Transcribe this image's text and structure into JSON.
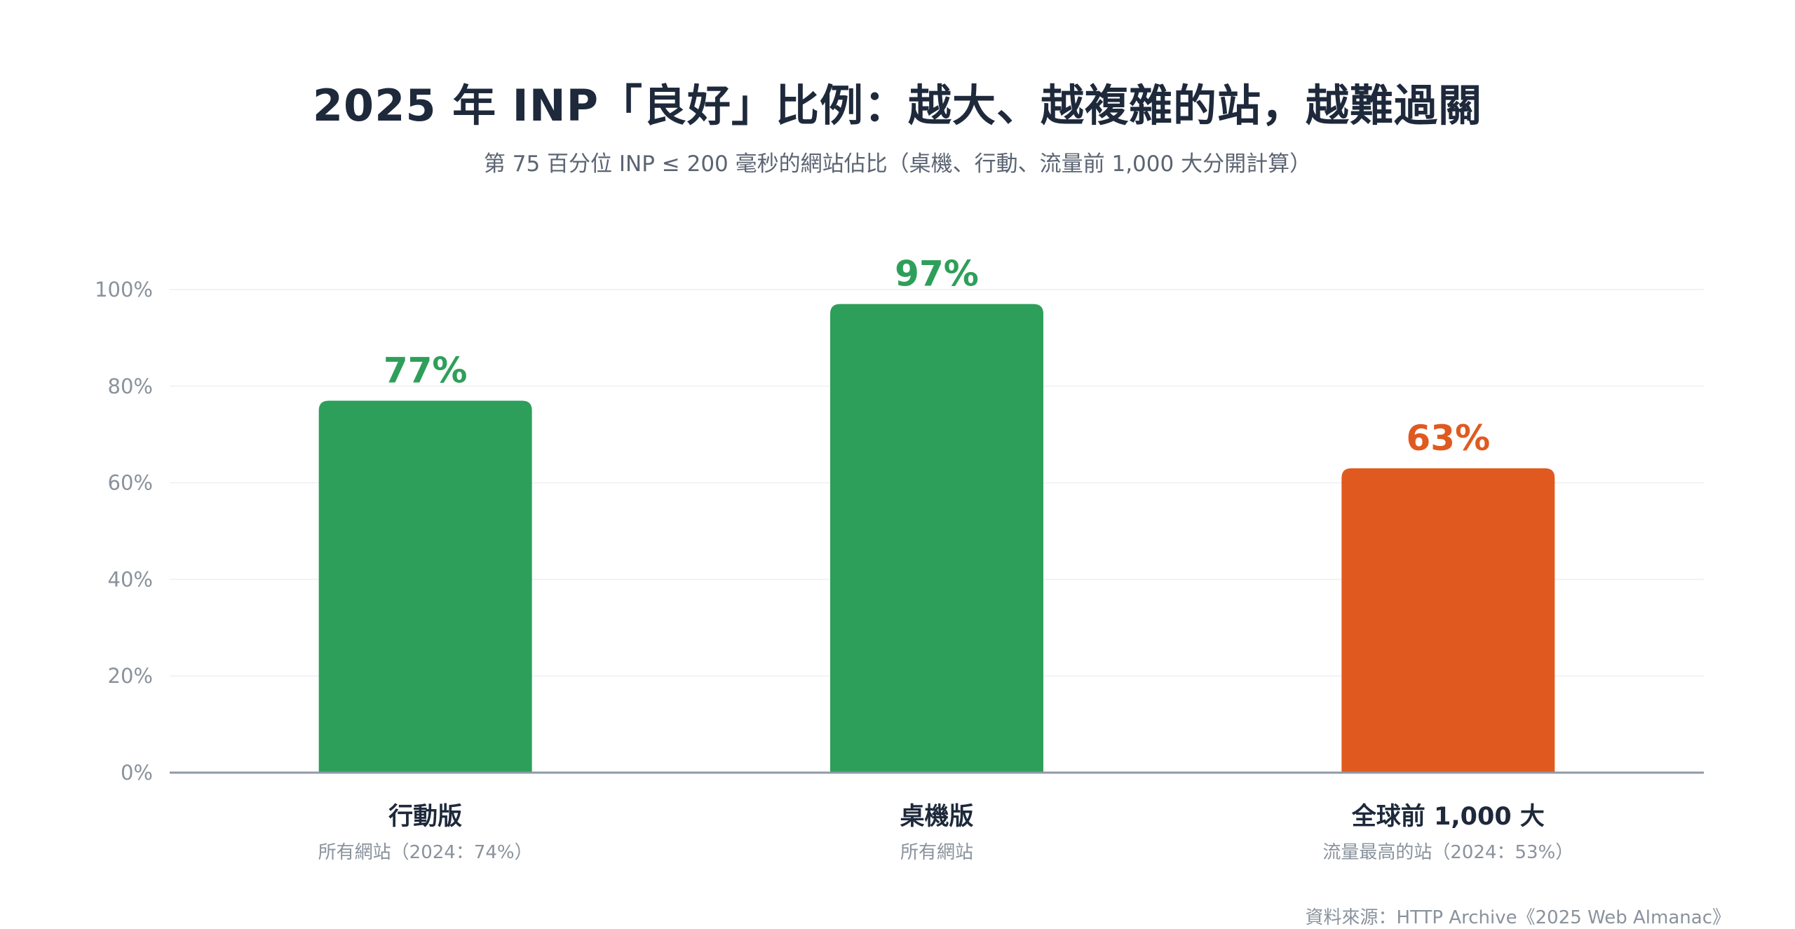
{
  "chart_data": {
    "type": "bar",
    "title": "2025 年 INP「良好」比例：越大、越複雜的站，越難過關",
    "subtitle": "第 75 百分位 INP ≤ 200 毫秒的網站佔比（桌機、行動、流量前 1,000 大分開計算）",
    "categories": [
      "行動版",
      "桌機版",
      "全球前 1,000 大"
    ],
    "category_notes": [
      "所有網站（2024：74%）",
      "所有網站",
      "流量最高的站（2024：53%）"
    ],
    "values": [
      77,
      97,
      63
    ],
    "value_labels": [
      "77%",
      "97%",
      "63%"
    ],
    "bar_colors": [
      "#2e9f5a",
      "#2e9f5a",
      "#e05a20"
    ],
    "ylim": [
      0,
      100
    ],
    "yticks": [
      0,
      20,
      40,
      60,
      80,
      100
    ],
    "ytick_labels": [
      "0%",
      "20%",
      "40%",
      "60%",
      "80%",
      "100%"
    ],
    "grid": true,
    "xlabel": "",
    "ylabel": "",
    "source": "資料來源：HTTP Archive《2025 Web Almanac》"
  }
}
